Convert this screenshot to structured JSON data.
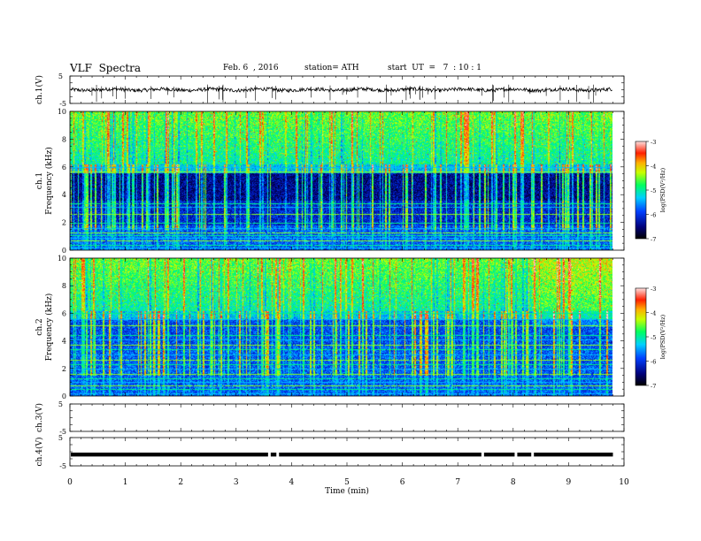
{
  "header": {
    "title": "VLF  Spectra",
    "date": "Feb. 6  , 2016",
    "station": "station= ATH",
    "start": "start  UT  =   7  : 10 : 1"
  },
  "chart_data": [
    {
      "type": "line",
      "name": "ch1-waveform",
      "ylabel": "ch.1(V)",
      "ylim": [
        -5,
        5
      ],
      "yticks": [
        "5",
        "-5"
      ],
      "xlim": [
        0,
        10
      ],
      "x_end": 9.8,
      "baseline": 0,
      "grid": false
    },
    {
      "type": "heatmap",
      "name": "ch1-spectrogram",
      "ylabel_top": "ch.1",
      "ylabel": "Frequency  (kHz)",
      "ylim": [
        0,
        10
      ],
      "yticks": [
        "0",
        "2",
        "4",
        "6",
        "8",
        "10"
      ],
      "xlim": [
        0,
        10
      ],
      "x_end": 9.8,
      "colorbar": {
        "label": "log(PSD(V²/Hz)",
        "range": [
          -7,
          -3
        ],
        "ticks": [
          "-3",
          "-4",
          "-5",
          "-6",
          "-7"
        ]
      },
      "bands_khz": [
        0.2,
        0.4,
        0.7,
        0.9,
        1.1,
        1.3,
        1.6,
        2.0,
        2.6,
        3.1,
        3.4,
        5.7,
        6.0
      ]
    },
    {
      "type": "heatmap",
      "name": "ch2-spectrogram",
      "ylabel_top": "ch.2",
      "ylabel": "Frequency  (kHz)",
      "ylim": [
        0,
        10
      ],
      "yticks": [
        "0",
        "2",
        "4",
        "6",
        "8",
        "10"
      ],
      "xlim": [
        0,
        10
      ],
      "x_end": 9.8,
      "colorbar": {
        "label": "log(PSD(V²/Hz)",
        "range": [
          -7,
          -3
        ],
        "ticks": [
          "-3",
          "-4",
          "-5",
          "-6",
          "-7"
        ]
      },
      "bands_khz": [
        0.2,
        0.5,
        0.8,
        1.0,
        1.3,
        1.6,
        2.0,
        2.3,
        2.6,
        3.0,
        3.4,
        3.7,
        4.1,
        4.4,
        5.1,
        5.6,
        6.0
      ]
    },
    {
      "type": "line",
      "name": "ch3-waveform",
      "ylabel": "ch.3(V)",
      "ylim": [
        -5,
        5
      ],
      "yticks": [
        "5",
        "-5"
      ],
      "xlim": [
        0,
        10
      ],
      "grid": false
    },
    {
      "type": "line",
      "name": "ch4-waveform",
      "ylabel": "ch.4(V)",
      "ylim": [
        -5,
        5
      ],
      "yticks": [
        "5",
        "-5"
      ],
      "xlim": [
        0,
        10
      ],
      "x_end": 9.8,
      "baseline": -1,
      "gaps_min": [
        3.6,
        3.75,
        7.45,
        8.05,
        8.35
      ],
      "grid": false
    }
  ],
  "xaxis": {
    "label": "Time  (min)",
    "range": [
      0,
      10
    ],
    "ticks": [
      "0",
      "1",
      "2",
      "3",
      "4",
      "5",
      "6",
      "7",
      "8",
      "9",
      "10"
    ]
  }
}
